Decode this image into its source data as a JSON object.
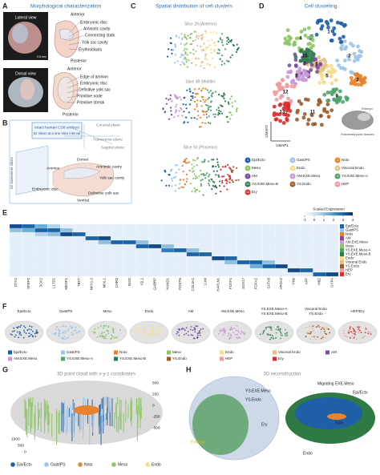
{
  "figure": {
    "letters": [
      "A",
      "B",
      "C",
      "D",
      "E",
      "F",
      "G",
      "H"
    ],
    "clusters": [
      {
        "id": 1,
        "name": "Epi/Ecto",
        "color": "#1f5fa8"
      },
      {
        "id": 2,
        "name": "Gast/PS",
        "color": "#9ec3e6"
      },
      {
        "id": 3,
        "name": "Noto",
        "color": "#e8822e"
      },
      {
        "id": 4,
        "name": "Meso",
        "color": "#8cc665"
      },
      {
        "id": 5,
        "name": "Endo",
        "color": "#f3de8e"
      },
      {
        "id": 6,
        "name": "Visceral Endo",
        "color": "#e3c08a"
      },
      {
        "id": 7,
        "name": "AM",
        "color": "#7b4fa0"
      },
      {
        "id": 8,
        "name": "AM.EXE.Meso",
        "color": "#c89ad6"
      },
      {
        "id": 9,
        "name": "YS.EXE.Meso-A",
        "color": "#4fa56a"
      },
      {
        "id": 10,
        "name": "YS.EXE.Meso-B",
        "color": "#2e7d4f"
      },
      {
        "id": 11,
        "name": "YS.Endo",
        "color": "#9a5a2c"
      },
      {
        "id": 12,
        "name": "HEP",
        "color": "#ef9ca0"
      },
      {
        "id": 13,
        "name": "Ery",
        "color": "#d7302c"
      }
    ],
    "panel_a": {
      "title": "Morphological characterization",
      "photo_labels": [
        "Lateral view",
        "Dorsal view"
      ],
      "scale_bar": "0.5 mm",
      "top_labels": [
        "Anterior",
        "Embryonic disc",
        "Amniotic cavity",
        "Connecting stalk",
        "Yolk sac cavity",
        "Erythroblasts",
        "Posterior"
      ],
      "bottom_labels": [
        "Anterior",
        "Edge of amnion",
        "Embryonic disc",
        "Definitive yolk sac",
        "Primitive node",
        "Primitive streak",
        "Posterior"
      ]
    },
    "panel_b": {
      "box_lines": [
        "Intact human CS8 embryo",
        "62 slices at a one-slice interval"
      ],
      "planes": [
        "Coronal plane",
        "Transverse plane",
        "Sagittal plane"
      ],
      "slices_label": "62 transverse slices",
      "labels": [
        "Dorsal",
        "Amnion",
        "Amniotic cavity",
        "Yolk sac cavity",
        "Embryonic disc",
        "Definitive yolk sac",
        "Ventral"
      ]
    },
    "panel_c": {
      "title": "Spatial distribution of cell clusters",
      "slices": [
        "Slice 29 (Anterior)",
        "Slice 38 (Middle)",
        "Slice 50 (Posterior)"
      ]
    },
    "panel_d": {
      "title": "Cell clustering",
      "axes": [
        "UMAP1",
        "UMAP2"
      ],
      "inset_labels": [
        "Extraembryonic tissues",
        "Embryo"
      ]
    },
    "panel_e": {
      "scale_title": "Scaled Expression",
      "scale_range": [
        -1,
        4
      ],
      "scale_ticks": [
        -1,
        0,
        1,
        2,
        3,
        4
      ],
      "row_labels": [
        "Epi/Ecto",
        "Gast/PS",
        "Noto",
        "AM",
        "AM.EXE.Meso",
        "Meso",
        "YS.EXE.Meso-A",
        "YS.EXE.Meso-B",
        "Endo",
        "Visceral Endo",
        "YS.Endo",
        "HEP",
        "Ery"
      ],
      "row_colors": [
        "#1f5fa8",
        "#9ec3e6",
        "#e8822e",
        "#7b4fa0",
        "#c89ad6",
        "#8cc665",
        "#4fa56a",
        "#2e7d4f",
        "#f3de8e",
        "#e3c08a",
        "#9a5a2c",
        "#ef9ca0",
        "#d7302c"
      ],
      "genes": [
        "OTX2",
        "SFRP2",
        "SOX2",
        "L1TD1",
        "MESP1",
        "TBXT",
        "NKX1-2",
        "MIXL1",
        "CHRD",
        "NOG",
        "ISL1",
        "GABRP",
        "HAND1",
        "POSTN",
        "COL3A1",
        "LUM",
        "HAPLN1",
        "FOXF1",
        "SOX17",
        "FOXA2",
        "GATA6",
        "APOA2",
        "TTR",
        "AFP",
        "HBZ",
        "GYPA"
      ],
      "values": [
        [
          3.5,
          3,
          1.5,
          0.5,
          -0.5,
          -0.5,
          -0.5,
          -0.5,
          -0.5,
          -0.5,
          -0.5,
          -0.5,
          -0.5,
          -0.5,
          -0.5,
          -0.5,
          -0.5,
          -0.5,
          -0.5,
          -0.5,
          -0.5,
          -0.5,
          -0.5,
          -0.5,
          -0.5,
          -0.5
        ],
        [
          1,
          1.5,
          3,
          3,
          1,
          -0.5,
          -0.5,
          -0.5,
          -0.5,
          -0.5,
          -0.5,
          -0.5,
          -0.5,
          -0.5,
          -0.5,
          -0.5,
          -0.5,
          -0.5,
          -0.5,
          -0.5,
          -0.5,
          -0.5,
          -0.5,
          -0.5,
          -0.5,
          -0.5
        ],
        [
          -0.5,
          -0.5,
          0.5,
          1,
          3.5,
          3,
          -0.5,
          -0.5,
          -0.5,
          -0.5,
          -0.5,
          -0.5,
          -0.5,
          -0.5,
          -0.5,
          -0.5,
          -0.5,
          -0.5,
          -0.5,
          -0.5,
          -0.5,
          -0.5,
          -0.5,
          -0.5,
          -0.5,
          -0.5
        ],
        [
          -0.5,
          -0.5,
          -0.5,
          -0.5,
          -0.5,
          -0.5,
          3,
          3.5,
          -0.5,
          -0.5,
          -0.5,
          -0.5,
          -0.5,
          -0.5,
          -0.5,
          -0.5,
          -0.5,
          -0.5,
          -0.5,
          -0.5,
          -0.5,
          -0.5,
          -0.5,
          -0.5,
          -0.5,
          -0.5
        ],
        [
          -0.5,
          -0.5,
          -0.5,
          -0.5,
          -0.5,
          -0.5,
          -0.5,
          1,
          3,
          3,
          1,
          -0.5,
          -0.5,
          -0.5,
          -0.5,
          -0.5,
          -0.5,
          -0.5,
          -0.5,
          -0.5,
          -0.5,
          -0.5,
          -0.5,
          -0.5,
          -0.5,
          -0.5
        ],
        [
          -0.5,
          -0.5,
          -0.5,
          -0.5,
          -0.5,
          -0.5,
          -0.5,
          -0.5,
          -0.5,
          -0.5,
          3,
          3.5,
          1,
          -0.5,
          -0.5,
          -0.5,
          -0.5,
          -0.5,
          -0.5,
          -0.5,
          -0.5,
          -0.5,
          -0.5,
          -0.5,
          -0.5,
          -0.5
        ],
        [
          -0.5,
          -0.5,
          -0.5,
          -0.5,
          -0.5,
          -0.5,
          -0.5,
          -0.5,
          -0.5,
          -0.5,
          -0.5,
          -0.5,
          2.5,
          3,
          1,
          -0.5,
          -0.5,
          -0.5,
          -0.5,
          -0.5,
          -0.5,
          -0.5,
          -0.5,
          -0.5,
          -0.5,
          -0.5
        ],
        [
          -0.5,
          -0.5,
          -0.5,
          -0.5,
          -0.5,
          -0.5,
          -0.5,
          -0.5,
          -0.5,
          -0.5,
          -0.5,
          -0.5,
          -0.5,
          -0.5,
          3,
          3,
          -0.5,
          -0.5,
          -0.5,
          -0.5,
          -0.5,
          -0.5,
          -0.5,
          -0.5,
          -0.5,
          -0.5
        ],
        [
          -0.5,
          -0.5,
          -0.5,
          -0.5,
          -0.5,
          -0.5,
          -0.5,
          -0.5,
          -0.5,
          -0.5,
          -0.5,
          -0.5,
          -0.5,
          -0.5,
          -0.5,
          -0.5,
          3.5,
          3,
          -0.5,
          -0.5,
          -0.5,
          -0.5,
          -0.5,
          -0.5,
          -0.5,
          -0.5
        ],
        [
          -0.5,
          -0.5,
          -0.5,
          -0.5,
          -0.5,
          -0.5,
          -0.5,
          -0.5,
          -0.5,
          -0.5,
          -0.5,
          -0.5,
          -0.5,
          -0.5,
          -0.5,
          -0.5,
          -0.5,
          1,
          3,
          3,
          1,
          -0.5,
          -0.5,
          -0.5,
          -0.5,
          -0.5
        ],
        [
          -0.5,
          -0.5,
          -0.5,
          -0.5,
          -0.5,
          -0.5,
          -0.5,
          -0.5,
          -0.5,
          -0.5,
          -0.5,
          -0.5,
          -0.5,
          -0.5,
          -0.5,
          -0.5,
          -0.5,
          -0.5,
          -0.5,
          1.5,
          3,
          3.5,
          -0.5,
          -0.5,
          -0.5,
          -0.5
        ],
        [
          -0.5,
          -0.5,
          -0.5,
          -0.5,
          -0.5,
          -0.5,
          -0.5,
          -0.5,
          -0.5,
          -0.5,
          -0.5,
          -0.5,
          -0.5,
          -0.5,
          -0.5,
          -0.5,
          -0.5,
          -0.5,
          -0.5,
          -0.5,
          -0.5,
          -0.5,
          3.5,
          3,
          -0.5,
          -0.5
        ],
        [
          -0.5,
          -0.5,
          -0.5,
          -0.5,
          -0.5,
          -0.5,
          -0.5,
          -0.5,
          -0.5,
          -0.5,
          -0.5,
          -0.5,
          -0.5,
          -0.5,
          -0.5,
          -0.5,
          -0.5,
          -0.5,
          -0.5,
          -0.5,
          -0.5,
          -0.5,
          -0.5,
          -0.5,
          3,
          3.5
        ]
      ]
    },
    "panel_f": {
      "titles": [
        [
          "Epi/Ecto"
        ],
        [
          "Gast/PS"
        ],
        [
          "Meso"
        ],
        [
          "Endo"
        ],
        [
          "AM"
        ],
        [
          "AM.EXE.Meso"
        ],
        [
          "YS.EXE.Meso-A",
          "YS.EXE.Meso-B"
        ],
        [
          "Visceral Endo",
          "YS.Endo"
        ],
        [
          "HEP/Ery"
        ]
      ]
    },
    "panel_g": {
      "title": "3D point cloud with x-y-z coordinates",
      "z_ticks": [
        500,
        250,
        0,
        -250,
        -500
      ],
      "x_ticks": [
        1000,
        500,
        0
      ]
    },
    "panel_h": {
      "title": "3D reconstruction",
      "left_labels": [
        "YS.EXE.Meso",
        "YS.Endo",
        "Ery",
        "Embryo"
      ],
      "right_labels": [
        "Migrating EXE.Meso",
        "Epi/Ecto",
        "Noto",
        "Endo"
      ]
    }
  }
}
